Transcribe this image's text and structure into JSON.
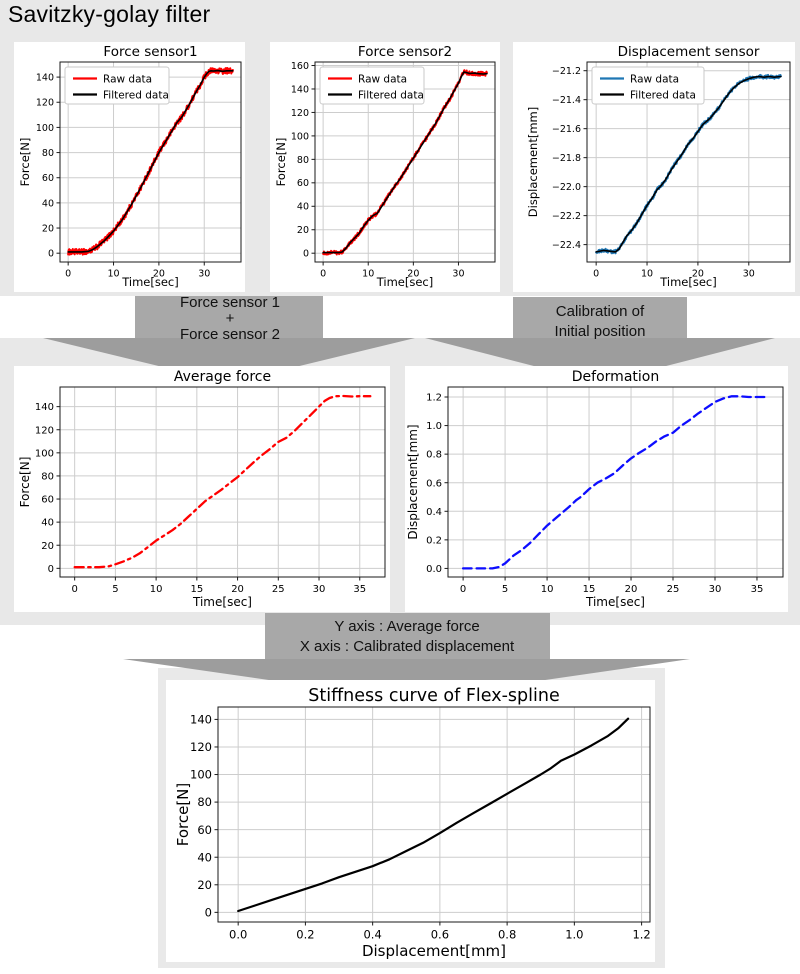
{
  "page_title": "Savitzky-golay filter",
  "colors": {
    "background_band": "#e8e8e8",
    "arrow_fill": "#9d9d9d",
    "arrow_body_fill": "#a8a8a8",
    "raw_red": "#ff0000",
    "raw_blue": "#1f77b4",
    "pure_blue": "#0d0dff",
    "filtered_black": "#000000"
  },
  "arrows": [
    {
      "id": "arrow-sum",
      "lines": [
        "Force sensor 1",
        "+",
        "Force sensor 2"
      ]
    },
    {
      "id": "arrow-cal",
      "lines": [
        "Calibration of",
        "Initial position"
      ]
    },
    {
      "id": "arrow-map",
      "lines": [
        "Y axis : Average force",
        "X axis : Calibrated displacement"
      ]
    }
  ],
  "chart_data": [
    {
      "id": "force-sensor1",
      "type": "line",
      "title": "Force sensor1",
      "xlabel": "Time[sec]",
      "ylabel": "Force[N]",
      "xlim": [
        -1.8,
        38.1
      ],
      "ylim": [
        -7,
        152
      ],
      "grid": true,
      "legend_position": "upper-left",
      "xticks": [
        0,
        10,
        20,
        30
      ],
      "xtick_labels": [
        "0",
        "10",
        "20",
        "30"
      ],
      "yticks": [
        0,
        20,
        40,
        60,
        80,
        100,
        120,
        140
      ],
      "ytick_labels": [
        "0",
        "20",
        "40",
        "60",
        "80",
        "100",
        "120",
        "140"
      ],
      "legend": [
        {
          "label": "Raw data",
          "color": "#ff0000"
        },
        {
          "label": "Filtered data",
          "color": "#000000"
        }
      ],
      "series": [
        {
          "name": "Raw data",
          "color": "#ff0000",
          "width": 2.1,
          "style": "solid",
          "noise": 2.3,
          "base": 1
        },
        {
          "name": "Filtered data",
          "color": "#000000",
          "width": 1.6,
          "style": "solid",
          "noise": 0,
          "x": [
            0,
            3,
            4.5,
            5.5,
            6.5,
            8,
            10,
            12,
            14,
            16,
            18,
            20,
            21,
            22,
            23,
            24,
            25,
            26,
            27,
            28,
            29,
            30,
            30.6,
            31,
            31.5,
            32,
            33,
            34,
            35,
            36.3
          ],
          "y": [
            1,
            1,
            1.5,
            3,
            5.5,
            10,
            17.5,
            27,
            39,
            52,
            66,
            80,
            86,
            92,
            98,
            104,
            108,
            114,
            120,
            127,
            133,
            140,
            143,
            144.5,
            145,
            144.8,
            145.2,
            144.6,
            145,
            145
          ]
        }
      ]
    },
    {
      "id": "force-sensor2",
      "type": "line",
      "title": "Force sensor2",
      "xlabel": "Time[sec]",
      "ylabel": "Force[N]",
      "xlim": [
        -1.8,
        38.1
      ],
      "ylim": [
        -7.5,
        163
      ],
      "grid": true,
      "legend_position": "upper-left",
      "xticks": [
        0,
        10,
        20,
        30
      ],
      "xtick_labels": [
        "0",
        "10",
        "20",
        "30"
      ],
      "yticks": [
        0,
        20,
        40,
        60,
        80,
        100,
        120,
        140,
        160
      ],
      "ytick_labels": [
        "0",
        "20",
        "40",
        "60",
        "80",
        "100",
        "120",
        "140",
        "160"
      ],
      "legend": [
        {
          "label": "Raw data",
          "color": "#ff0000"
        },
        {
          "label": "Filtered data",
          "color": "#000000"
        }
      ],
      "series": [
        {
          "name": "Raw data",
          "color": "#ff0000",
          "width": 2.0,
          "style": "solid",
          "noise": 1.8,
          "base": 1
        },
        {
          "name": "Filtered data",
          "color": "#000000",
          "width": 1.6,
          "style": "solid",
          "noise": 0,
          "x": [
            0,
            3.5,
            4.2,
            5,
            6,
            7,
            8,
            9,
            10,
            11,
            12,
            13,
            14,
            15,
            16,
            17,
            18,
            19,
            20,
            21,
            22,
            23,
            24,
            25,
            26,
            27,
            28,
            29,
            30,
            30.7,
            31.2,
            31.8,
            32.5,
            33.5,
            34.5,
            35.5,
            36.3
          ],
          "y": [
            0.5,
            0.5,
            1,
            4,
            9,
            13,
            17,
            23,
            28,
            32,
            34,
            40,
            46,
            52,
            58,
            63,
            69,
            75,
            81,
            87,
            93,
            99,
            105,
            111,
            118,
            125,
            131,
            138,
            145,
            151,
            154.5,
            154,
            153.2,
            153.5,
            153,
            152.8,
            153
          ]
        }
      ]
    },
    {
      "id": "displacement-sensor",
      "type": "line",
      "title": "Displacement sensor",
      "xlabel": "Time[sec]",
      "ylabel": "Displacement[mm]",
      "xlim": [
        -1.8,
        38.1
      ],
      "ylim": [
        -22.52,
        -21.14
      ],
      "grid": true,
      "legend_position": "upper-left",
      "xticks": [
        0,
        10,
        20,
        30
      ],
      "xtick_labels": [
        "0",
        "10",
        "20",
        "30"
      ],
      "yticks": [
        -22.4,
        -22.2,
        -22.0,
        -21.8,
        -21.6,
        -21.4,
        -21.2
      ],
      "ytick_labels": [
        "−22.4",
        "−22.2",
        "−22.0",
        "−21.8",
        "−21.6",
        "−21.4",
        "−21.2"
      ],
      "legend": [
        {
          "label": "Raw data",
          "color": "#1f77b4"
        },
        {
          "label": "Filtered data",
          "color": "#000000"
        }
      ],
      "series": [
        {
          "name": "Raw data",
          "color": "#1f77b4",
          "width": 2.2,
          "style": "solid",
          "noise": 0.012,
          "base": 1
        },
        {
          "name": "Filtered data",
          "color": "#000000",
          "width": 1.6,
          "style": "solid",
          "noise": 0,
          "x": [
            0,
            1.5,
            3.8,
            4.5,
            5,
            6,
            7,
            8,
            9,
            10,
            11,
            12,
            12.6,
            13.5,
            14,
            15,
            16,
            17,
            18,
            19,
            20,
            21,
            22,
            22.6,
            23.5,
            24,
            25,
            26,
            27,
            28,
            29,
            30,
            31,
            32,
            33,
            34,
            35,
            36.3
          ],
          "y": [
            -22.45,
            -22.44,
            -22.45,
            -22.43,
            -22.4,
            -22.34,
            -22.3,
            -22.25,
            -22.19,
            -22.13,
            -22.08,
            -22.02,
            -22.0,
            -21.96,
            -21.93,
            -21.87,
            -21.82,
            -21.77,
            -21.71,
            -21.67,
            -21.62,
            -21.57,
            -21.54,
            -21.52,
            -21.48,
            -21.46,
            -21.41,
            -21.36,
            -21.32,
            -21.29,
            -21.27,
            -21.255,
            -21.245,
            -21.24,
            -21.245,
            -21.24,
            -21.245,
            -21.24
          ]
        }
      ]
    },
    {
      "id": "average-force",
      "type": "line",
      "title": "Average force",
      "xlabel": "Time[sec]",
      "ylabel": "Force[N]",
      "xlim": [
        -1.8,
        38.1
      ],
      "ylim": [
        -7.5,
        157
      ],
      "grid": true,
      "legend": null,
      "xticks": [
        0,
        5,
        10,
        15,
        20,
        25,
        30,
        35
      ],
      "xtick_labels": [
        "0",
        "5",
        "10",
        "15",
        "20",
        "25",
        "30",
        "35"
      ],
      "yticks": [
        0,
        20,
        40,
        60,
        80,
        100,
        120,
        140
      ],
      "ytick_labels": [
        "0",
        "20",
        "40",
        "60",
        "80",
        "100",
        "120",
        "140"
      ],
      "series": [
        {
          "name": "Average force",
          "color": "#ff0000",
          "width": 2.3,
          "style": "dashdot",
          "noise": 0,
          "x": [
            0,
            3,
            4.2,
            5,
            6,
            7,
            8,
            9,
            10,
            11,
            12,
            13,
            14,
            15,
            16,
            17,
            18,
            19,
            20,
            21,
            22,
            23,
            24,
            25,
            26,
            27,
            28,
            29,
            30,
            30.7,
            31.3,
            32,
            33,
            34,
            35,
            36.3
          ],
          "y": [
            1,
            1,
            1.8,
            3.5,
            6,
            9,
            13,
            18.5,
            24,
            28.5,
            33,
            38.5,
            45,
            51.5,
            58,
            63,
            68,
            73.5,
            79,
            85.5,
            92,
            98,
            103.5,
            109.5,
            113,
            119,
            126,
            133,
            140,
            145,
            147.5,
            149,
            149.2,
            148.8,
            149,
            149
          ]
        }
      ]
    },
    {
      "id": "deformation",
      "type": "line",
      "title": "Deformation",
      "xlabel": "Time[sec]",
      "ylabel": "Displacement[mm]",
      "xlim": [
        -1.8,
        38.1
      ],
      "ylim": [
        -0.06,
        1.27
      ],
      "grid": true,
      "legend": null,
      "xticks": [
        0,
        5,
        10,
        15,
        20,
        25,
        30,
        35
      ],
      "xtick_labels": [
        "0",
        "5",
        "10",
        "15",
        "20",
        "25",
        "30",
        "35"
      ],
      "yticks": [
        0,
        0.2,
        0.4,
        0.6,
        0.8,
        1.0,
        1.2
      ],
      "ytick_labels": [
        "0.0",
        "0.2",
        "0.4",
        "0.6",
        "0.8",
        "1.0",
        "1.2"
      ],
      "series": [
        {
          "name": "Deformation",
          "color": "#0d0dff",
          "width": 2.3,
          "style": "dash",
          "noise": 0,
          "x": [
            0,
            3.5,
            4.3,
            5,
            6,
            7,
            8,
            9,
            10,
            11,
            12,
            12.6,
            13.5,
            14,
            15,
            16,
            17,
            18,
            19,
            20,
            21,
            22,
            23,
            24,
            25,
            26,
            27,
            28,
            29,
            30,
            31,
            32,
            33,
            34,
            35,
            36.3
          ],
          "y": [
            0,
            0,
            0.01,
            0.035,
            0.09,
            0.13,
            0.18,
            0.24,
            0.3,
            0.35,
            0.4,
            0.43,
            0.48,
            0.5,
            0.555,
            0.6,
            0.63,
            0.665,
            0.72,
            0.77,
            0.81,
            0.845,
            0.89,
            0.925,
            0.95,
            1.0,
            1.04,
            1.085,
            1.125,
            1.165,
            1.19,
            1.205,
            1.205,
            1.2,
            1.2,
            1.2
          ]
        }
      ]
    },
    {
      "id": "stiffness-curve",
      "type": "line",
      "title": "Stiffness curve of Flex-spline",
      "xlabel": "Displacement[mm]",
      "ylabel": "Force[N]",
      "xlim": [
        -0.06,
        1.225
      ],
      "ylim": [
        -7,
        149
      ],
      "grid": true,
      "legend": null,
      "xticks": [
        0,
        0.2,
        0.4,
        0.6,
        0.8,
        1.0,
        1.2
      ],
      "xtick_labels": [
        "0.0",
        "0.2",
        "0.4",
        "0.6",
        "0.8",
        "1.0",
        "1.2"
      ],
      "yticks": [
        0,
        20,
        40,
        60,
        80,
        100,
        120,
        140
      ],
      "ytick_labels": [
        "0",
        "20",
        "40",
        "60",
        "80",
        "100",
        "120",
        "140"
      ],
      "series": [
        {
          "name": "Stiffness",
          "color": "#000000",
          "width": 2.2,
          "style": "solid",
          "noise": 0,
          "x": [
            0,
            0.05,
            0.1,
            0.15,
            0.2,
            0.25,
            0.3,
            0.35,
            0.4,
            0.45,
            0.5,
            0.55,
            0.6,
            0.65,
            0.7,
            0.75,
            0.8,
            0.85,
            0.9,
            0.93,
            0.96,
            1.0,
            1.05,
            1.1,
            1.13,
            1.16
          ],
          "y": [
            1,
            5,
            9,
            13,
            17,
            21,
            25.5,
            29.5,
            33.5,
            38.5,
            44.5,
            50.5,
            57.5,
            65,
            72,
            79,
            86,
            93,
            100,
            104.5,
            110,
            114.5,
            121,
            128,
            133.5,
            140.5
          ]
        }
      ]
    }
  ]
}
